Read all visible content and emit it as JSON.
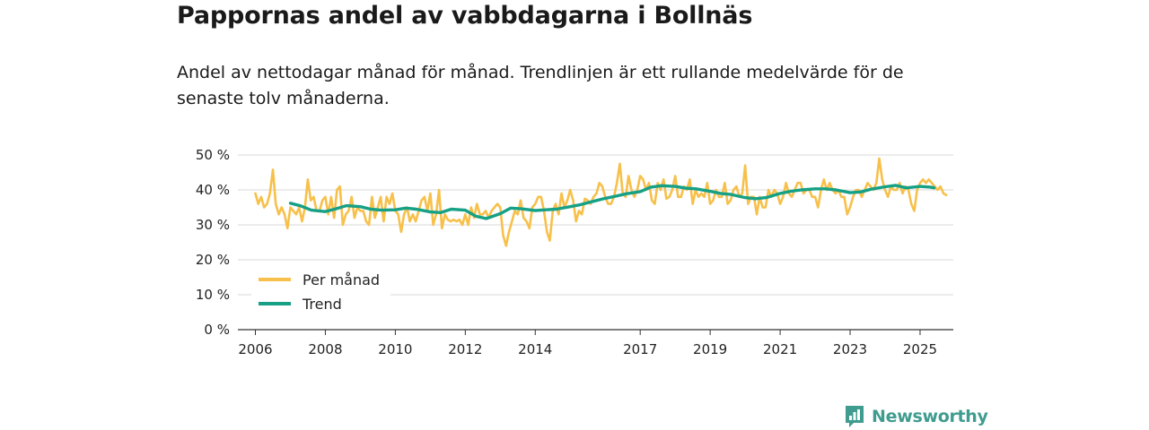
{
  "title": "Pappornas andel av vabbdagarna i Bollnäs",
  "subtitle": "Andel av nettodagar månad för månad. Trendlinjen är ett rullande medelvärde för de senaste tolv månaderna.",
  "brand": {
    "name": "Newsworthy",
    "color": "#3f9c8f",
    "icon": "bar-chart-speech-bubble-icon"
  },
  "chart_data": {
    "type": "line",
    "title": "Pappornas andel av vabbdagarna i Bollnäs",
    "xlabel": "",
    "ylabel": "",
    "ylim": [
      0,
      50
    ],
    "xlim": [
      2005.5,
      2025.95
    ],
    "y_ticks": [
      0,
      10,
      20,
      30,
      40,
      50
    ],
    "y_tick_labels": [
      "0 %",
      "10 %",
      "20 %",
      "30 %",
      "40 %",
      "50 %"
    ],
    "x_ticks": [
      2006,
      2008,
      2010,
      2012,
      2014,
      2017,
      2019,
      2021,
      2023,
      2025
    ],
    "x_tick_labels": [
      "2006",
      "2008",
      "2010",
      "2012",
      "2014",
      "2017",
      "2019",
      "2021",
      "2023",
      "2025"
    ],
    "grid": true,
    "legend_position": "lower-left",
    "series": [
      {
        "name": "Per månad",
        "color": "#f7c04a",
        "x_start": 2006.0,
        "step": 0.0833333,
        "values": [
          39,
          36,
          38,
          35,
          36,
          39,
          45.8,
          36,
          33,
          35,
          33,
          29,
          35,
          34,
          33,
          35,
          31,
          35,
          43,
          37,
          38,
          34,
          34,
          37,
          38,
          33,
          38,
          32,
          40,
          41,
          30,
          33,
          34,
          38,
          32,
          35,
          34,
          34,
          31,
          30,
          38,
          32,
          35,
          38,
          31,
          38,
          36,
          39,
          34,
          33,
          28,
          33,
          35,
          31,
          33,
          31,
          34,
          37,
          38,
          34,
          39,
          30,
          33,
          40,
          29,
          33,
          31.5,
          31,
          31.5,
          31,
          31.5,
          30,
          33,
          30,
          35,
          32,
          36,
          33,
          33,
          34,
          32,
          34,
          35,
          36,
          35,
          27,
          24,
          28,
          31,
          34,
          33,
          37,
          32,
          31,
          29,
          35,
          36,
          38,
          38,
          34,
          28,
          25.5,
          34,
          36,
          33,
          39,
          35,
          37,
          40,
          37,
          31,
          34,
          33,
          37.5,
          37,
          36,
          38,
          39,
          42,
          41,
          38,
          36,
          36,
          38,
          42,
          47.5,
          39,
          38,
          44,
          40,
          38,
          40,
          44,
          43,
          40,
          42,
          37,
          36,
          42,
          40,
          43,
          37.5,
          38,
          40,
          44,
          38,
          38,
          41,
          40,
          43,
          36,
          40,
          38,
          39,
          38,
          42,
          36,
          37,
          40,
          38,
          38,
          42,
          36,
          37,
          40,
          41,
          38,
          39,
          47,
          36,
          38,
          38,
          33,
          38,
          35,
          35,
          40,
          38,
          40,
          39,
          36,
          38,
          42,
          39,
          38,
          40,
          42,
          42,
          39,
          40,
          40,
          38,
          38,
          35,
          40,
          43,
          40,
          42,
          40,
          39,
          40,
          38,
          38,
          33,
          35,
          38,
          40,
          40,
          38,
          40,
          42,
          41,
          40,
          42,
          49,
          43,
          40,
          38,
          41,
          40,
          40,
          42,
          39,
          41,
          40,
          36,
          34,
          40,
          42,
          43,
          42,
          43,
          42,
          41,
          40,
          41,
          39,
          38.5
        ]
      },
      {
        "name": "Trend",
        "color": "#16a085",
        "points": [
          [
            2007.0,
            36.2
          ],
          [
            2007.3,
            35.4
          ],
          [
            2007.6,
            34.2
          ],
          [
            2008.0,
            33.8
          ],
          [
            2008.3,
            34.6
          ],
          [
            2008.6,
            35.5
          ],
          [
            2009.0,
            35.2
          ],
          [
            2009.3,
            34.5
          ],
          [
            2009.6,
            34.2
          ],
          [
            2010.0,
            34.3
          ],
          [
            2010.3,
            34.8
          ],
          [
            2010.6,
            34.5
          ],
          [
            2011.0,
            33.7
          ],
          [
            2011.3,
            33.5
          ],
          [
            2011.6,
            34.5
          ],
          [
            2012.0,
            34.2
          ],
          [
            2012.3,
            32.5
          ],
          [
            2012.6,
            31.8
          ],
          [
            2013.0,
            33.2
          ],
          [
            2013.3,
            34.8
          ],
          [
            2013.6,
            34.6
          ],
          [
            2014.0,
            34.1
          ],
          [
            2014.3,
            34.3
          ],
          [
            2014.6,
            34.5
          ],
          [
            2015.0,
            35.2
          ],
          [
            2015.3,
            35.8
          ],
          [
            2015.6,
            36.6
          ],
          [
            2016.0,
            37.6
          ],
          [
            2016.3,
            38.2
          ],
          [
            2016.6,
            38.9
          ],
          [
            2017.0,
            39.5
          ],
          [
            2017.3,
            40.8
          ],
          [
            2017.6,
            41.2
          ],
          [
            2018.0,
            41.0
          ],
          [
            2018.3,
            40.5
          ],
          [
            2018.6,
            40.3
          ],
          [
            2019.0,
            39.6
          ],
          [
            2019.3,
            39.0
          ],
          [
            2019.6,
            38.7
          ],
          [
            2020.0,
            37.8
          ],
          [
            2020.3,
            37.5
          ],
          [
            2020.6,
            37.8
          ],
          [
            2021.0,
            39.0
          ],
          [
            2021.3,
            39.6
          ],
          [
            2021.6,
            40.0
          ],
          [
            2022.0,
            40.3
          ],
          [
            2022.3,
            40.3
          ],
          [
            2022.6,
            40.0
          ],
          [
            2023.0,
            39.2
          ],
          [
            2023.3,
            39.4
          ],
          [
            2023.6,
            40.2
          ],
          [
            2024.0,
            40.9
          ],
          [
            2024.3,
            41.3
          ],
          [
            2024.6,
            40.6
          ],
          [
            2025.0,
            41.0
          ],
          [
            2025.3,
            40.8
          ],
          [
            2025.4,
            40.6
          ]
        ]
      }
    ]
  }
}
